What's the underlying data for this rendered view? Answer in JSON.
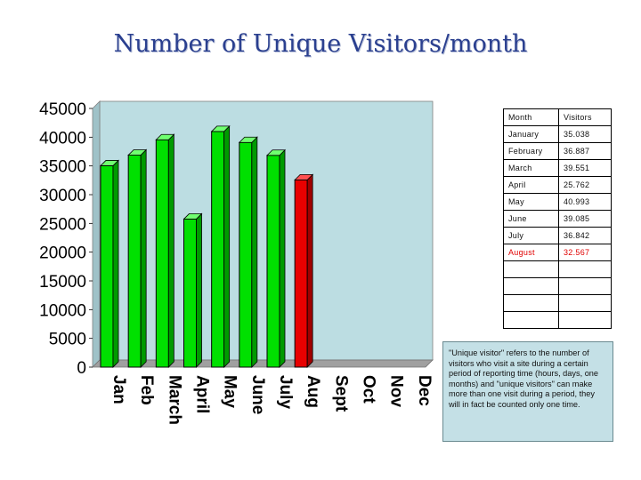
{
  "title": "Number of Unique Visitors/month",
  "chart_data": {
    "type": "bar",
    "categories": [
      "Jan",
      "Feb",
      "March",
      "April",
      "May",
      "June",
      "July",
      "Aug",
      "Sept",
      "Oct",
      "Nov",
      "Dec"
    ],
    "values": [
      35038,
      36887,
      39551,
      25762,
      40993,
      39085,
      36842,
      32567,
      null,
      null,
      null,
      null
    ],
    "highlight_index": 7,
    "ylim": [
      0,
      45000
    ],
    "yticks": [
      "45000",
      "40000",
      "35000",
      "30000",
      "25000",
      "20000",
      "15000",
      "10000",
      "5000",
      "0"
    ],
    "ytick_values": [
      45000,
      40000,
      35000,
      30000,
      25000,
      20000,
      15000,
      10000,
      5000,
      0
    ],
    "grid": false,
    "colors": {
      "bar": "#00e000",
      "bar_highlight": "#e80000",
      "plot_bg": "#bcdde2",
      "floor": "#a0a0a0"
    }
  },
  "table": {
    "header": [
      "Month",
      "Visitors"
    ],
    "rows": [
      [
        "January",
        "35.038"
      ],
      [
        "February",
        "36.887"
      ],
      [
        "March",
        "39.551"
      ],
      [
        "April",
        "25.762"
      ],
      [
        "May",
        "40.993"
      ],
      [
        "June",
        "39.085"
      ],
      [
        "July",
        "36.842"
      ],
      [
        "August",
        "32.567"
      ],
      [
        "",
        ""
      ],
      [
        "",
        ""
      ],
      [
        "",
        ""
      ],
      [
        "",
        ""
      ]
    ],
    "highlight_row": 7
  },
  "note": "\"Unique visitor\" refers to the number of visitors who visit a site during a certain period of reporting time (hours, days, one months) and \"unique visitors\" can make more than one visit during a period, they will in fact be counted only one time."
}
